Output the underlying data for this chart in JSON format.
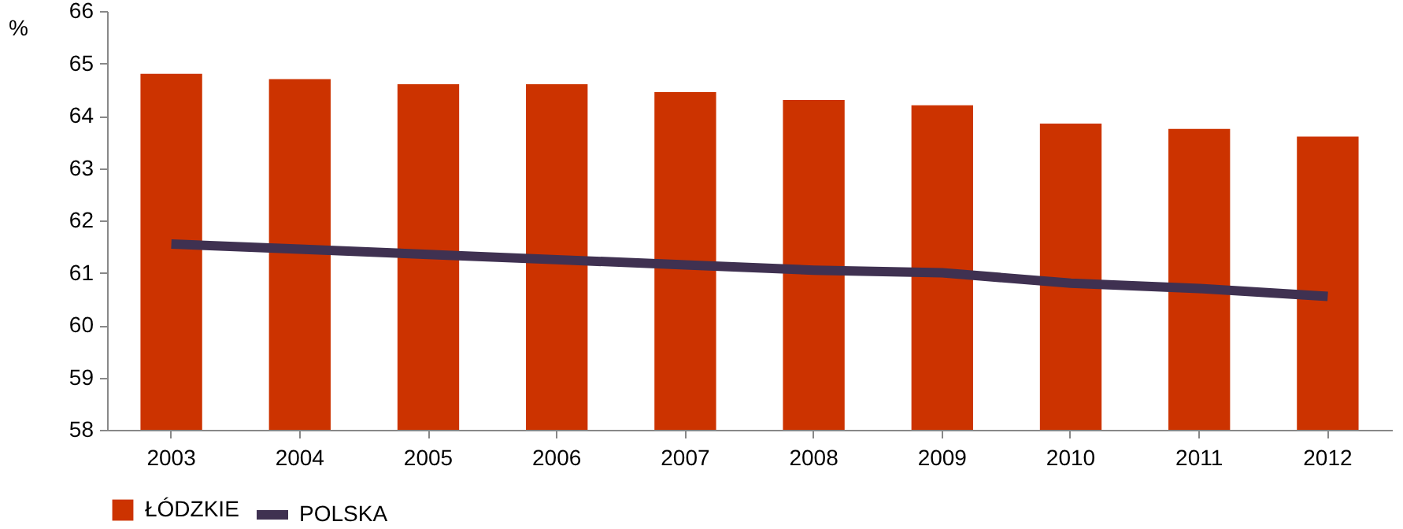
{
  "chart_data": {
    "type": "bar",
    "ylabel": "%",
    "categories": [
      "2003",
      "2004",
      "2005",
      "2006",
      "2007",
      "2008",
      "2009",
      "2010",
      "2011",
      "2012"
    ],
    "series": [
      {
        "name": "ŁÓDZKIE",
        "type": "bar",
        "color": "#cc3300",
        "values": [
          64.8,
          64.7,
          64.6,
          64.6,
          64.45,
          64.3,
          64.2,
          63.85,
          63.75,
          63.6
        ]
      },
      {
        "name": "POLSKA",
        "type": "line",
        "color": "#3f3151",
        "values": [
          61.55,
          61.45,
          61.35,
          61.25,
          61.15,
          61.05,
          61.0,
          60.8,
          60.7,
          60.55
        ]
      }
    ],
    "ylim": [
      58,
      66
    ],
    "yticks": [
      58,
      59,
      60,
      61,
      62,
      63,
      64,
      65,
      66
    ],
    "grid": false,
    "legend": "bottom"
  }
}
